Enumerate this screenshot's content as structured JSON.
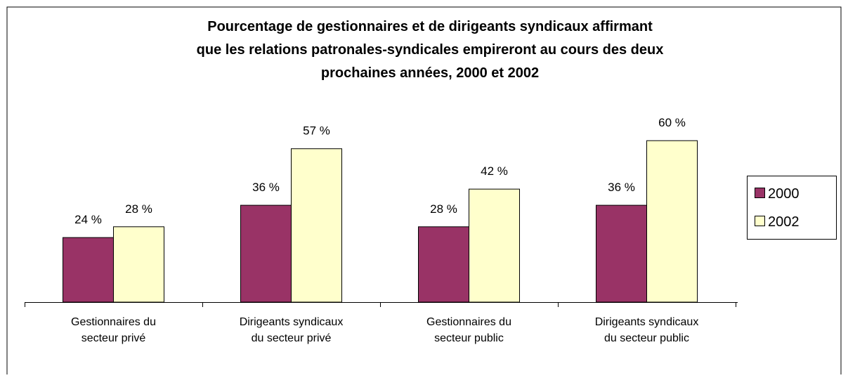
{
  "chart_data": {
    "type": "bar",
    "title": "Pourcentage de gestionnaires et de dirigeants syndicaux affirmant\nque les relations patronales-syndicales empireront au cours des deux\nprochaines années, 2000 et 2002",
    "categories": [
      "Gestionnaires du\nsecteur privé",
      "Dirigeants syndicaux\ndu secteur privé",
      "Gestionnaires du\nsecteur public",
      "Dirigeants syndicaux\ndu secteur public"
    ],
    "series": [
      {
        "name": "2000",
        "color": "#993366",
        "values": [
          24,
          36,
          28,
          36
        ],
        "value_labels": [
          "24 %",
          "36 %",
          "28 %",
          "36 %"
        ]
      },
      {
        "name": "2002",
        "color": "#ffffcc",
        "values": [
          28,
          57,
          42,
          60
        ],
        "value_labels": [
          "28 %",
          "57 %",
          "42 %",
          "60 %"
        ]
      }
    ],
    "ylim": [
      0,
      100
    ],
    "legend": "right"
  }
}
